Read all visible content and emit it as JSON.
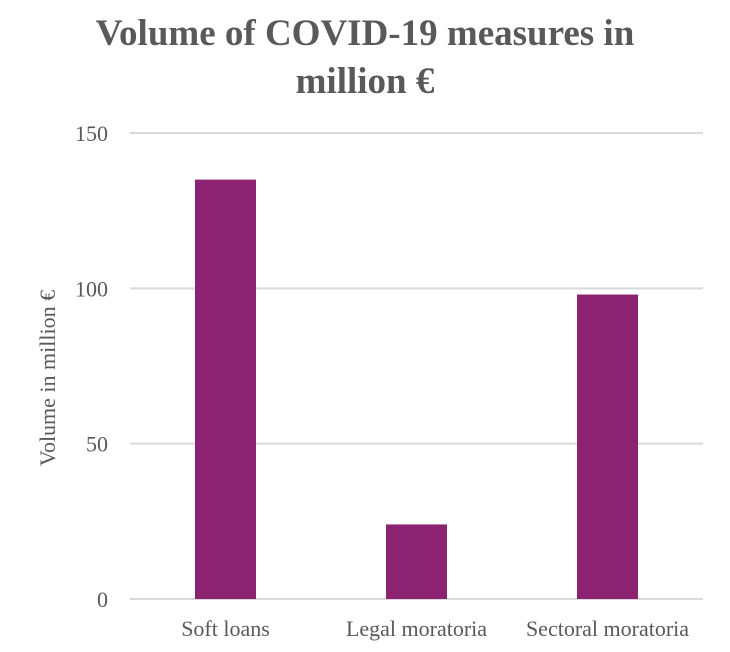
{
  "chart_data": {
    "type": "bar",
    "title_lines": [
      "Volume of COVID-19 measures in",
      "million €"
    ],
    "ylabel": "Volume in million €",
    "xlabel": "",
    "categories": [
      "Soft loans",
      "Legal moratoria",
      "Sectoral moratoria"
    ],
    "values": [
      135,
      24,
      98
    ],
    "ylim": [
      0,
      150
    ],
    "yticks": [
      0,
      50,
      100,
      150
    ],
    "grid": true,
    "legend": "none",
    "bar_color": "#8B2370",
    "grid_color": "#D9D9D9"
  }
}
